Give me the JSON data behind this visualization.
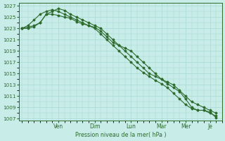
{
  "background_color": "#c8ece8",
  "line_color": "#2d6b2d",
  "ylabel": "Pression niveau de la mer( hPa )",
  "ylim": [
    1007,
    1027
  ],
  "yticks": [
    1007,
    1009,
    1011,
    1013,
    1015,
    1017,
    1019,
    1021,
    1023,
    1025,
    1027
  ],
  "x_day_labels": [
    "Ven",
    "Dim",
    "Lun",
    "Mar",
    "Mer",
    "Je"
  ],
  "x_day_positions": [
    12,
    24,
    36,
    46,
    54,
    62
  ],
  "xlim": [
    -1,
    66
  ],
  "line1_x": [
    0,
    2,
    4,
    6,
    8,
    10,
    12,
    14,
    16,
    18,
    20,
    22,
    24,
    26,
    28,
    30,
    32,
    34,
    36,
    38,
    40,
    42,
    44,
    46,
    48,
    50,
    52,
    54,
    56,
    58,
    60,
    62,
    64
  ],
  "line1_y": [
    1023,
    1023.2,
    1023.5,
    1024,
    1025.5,
    1025.5,
    1025.3,
    1025,
    1024.8,
    1024.2,
    1023.8,
    1023.5,
    1023.2,
    1022.5,
    1021.5,
    1020.5,
    1020,
    1019,
    1018,
    1017,
    1016,
    1015,
    1014.5,
    1014,
    1013.5,
    1013,
    1012,
    1011,
    1010,
    1009.5,
    1009,
    1008.5,
    1008
  ],
  "line2_x": [
    0,
    2,
    4,
    6,
    8,
    10,
    12,
    14,
    16,
    18,
    20,
    22,
    24,
    26,
    28,
    30,
    32,
    34,
    36,
    38,
    40,
    42,
    44,
    46,
    48,
    50,
    52,
    54,
    56,
    58,
    60,
    62,
    64
  ],
  "line2_y": [
    1023,
    1023.5,
    1024.5,
    1025.5,
    1026,
    1026.3,
    1026,
    1025.5,
    1025,
    1024.5,
    1024,
    1023.5,
    1023,
    1022,
    1021,
    1020,
    1019,
    1018,
    1017,
    1016,
    1015.2,
    1014.5,
    1013.8,
    1013.2,
    1012.5,
    1011.5,
    1010.5,
    1009.5,
    1008.8,
    1008.5,
    1008.5,
    1008,
    1007.5
  ],
  "line3_x": [
    0,
    2,
    4,
    6,
    8,
    10,
    12,
    14,
    16,
    18,
    20,
    22,
    24,
    26,
    28,
    30,
    32,
    34,
    36,
    38,
    40,
    42,
    44,
    46,
    48,
    50,
    52,
    54,
    56,
    58,
    60,
    62,
    64
  ],
  "line3_y": [
    1023,
    1023,
    1023.3,
    1024,
    1025.5,
    1026,
    1026.5,
    1026.2,
    1025.5,
    1025,
    1024.5,
    1024,
    1023.5,
    1023,
    1022,
    1021,
    1020,
    1019.5,
    1019,
    1018,
    1017,
    1016,
    1015,
    1014,
    1013.2,
    1012.5,
    1011.8,
    1010.5,
    1009,
    1008.5,
    1008.5,
    1008.2,
    1007.2
  ]
}
